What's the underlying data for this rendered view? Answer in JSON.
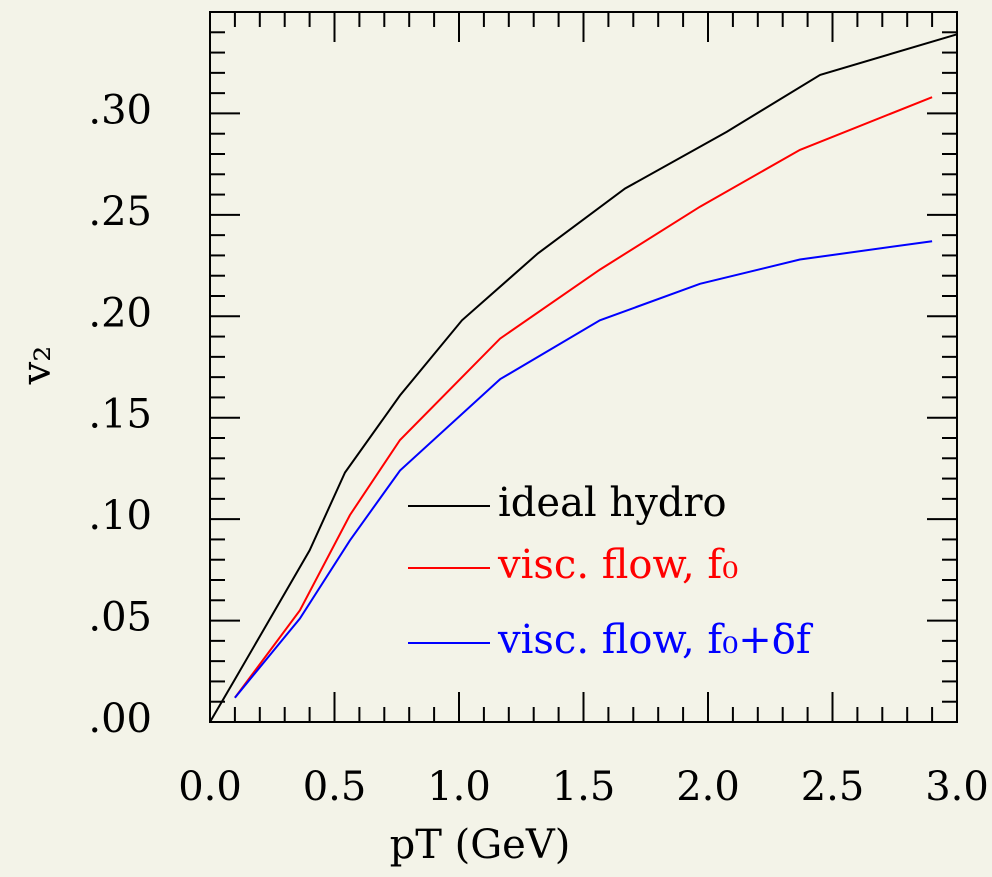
{
  "chart_data": {
    "type": "line",
    "x_label": "pT (GeV)",
    "y_label": "v₂",
    "xlim": [
      0,
      3.0
    ],
    "ylim": [
      0,
      0.35
    ],
    "xticks": [
      {
        "value": 0,
        "label": "0.0"
      },
      0.5,
      {
        "value": 1,
        "label": "1.0"
      },
      1.5,
      {
        "value": 2,
        "label": "2.0"
      },
      2.5,
      {
        "value": 3,
        "label": "3.0"
      }
    ],
    "yticks": [
      {
        "value": 0,
        "label": ".00"
      },
      {
        "value": 0.05,
        "label": ".05"
      },
      {
        "value": 0.1,
        "label": ".10"
      },
      {
        "value": 0.15,
        "label": ".15"
      },
      {
        "value": 0.2,
        "label": ".20"
      },
      {
        "value": 0.25,
        "label": ".25"
      },
      {
        "value": 0.3,
        "label": ".30"
      }
    ],
    "xminorticks": [
      0.1,
      0.2,
      0.3,
      0.4,
      0.6,
      0.7,
      0.8,
      0.9,
      1.1,
      1.2,
      1.3,
      1.4,
      1.6,
      1.7,
      1.8,
      1.9,
      2.1,
      2.2,
      2.3,
      2.4,
      2.6,
      2.7,
      2.8,
      2.9
    ],
    "yminorticks": [
      0.01,
      0.02,
      0.03,
      0.04,
      0.06,
      0.07,
      0.08,
      0.09,
      0.11,
      0.12,
      0.13,
      0.14,
      0.16,
      0.17,
      0.18,
      0.19,
      0.21,
      0.22,
      0.23,
      0.24,
      0.26,
      0.27,
      0.28,
      0.29,
      0.31,
      0.32,
      0.33,
      0.34
    ],
    "series": [
      {
        "name": "ideal hydro",
        "color": "#000000",
        "x": [
          0,
          0.1,
          0.4,
          0.542,
          0.763,
          1.012,
          1.317,
          1.667,
          2.076,
          2.45,
          3.0
        ],
        "values": [
          0,
          0.021,
          0.0846,
          0.123,
          0.161,
          0.198,
          0.231,
          0.263,
          0.291,
          0.319,
          0.339
        ]
      },
      {
        "name": "visc. flow, f₀",
        "color": "#ff0000",
        "x": [
          0.1,
          0.361,
          0.562,
          0.763,
          1.165,
          1.566,
          1.968,
          2.369,
          2.9
        ],
        "values": [
          0.012,
          0.055,
          0.102,
          0.139,
          0.189,
          0.223,
          0.254,
          0.282,
          0.308
        ]
      },
      {
        "name": "visc. flow, f₀+δf",
        "color": "#0000ff",
        "x": [
          0.1,
          0.361,
          0.562,
          0.763,
          1.165,
          1.566,
          1.968,
          2.369,
          2.9
        ],
        "values": [
          0.012,
          0.051,
          0.0895,
          0.124,
          0.169,
          0.198,
          0.216,
          0.228,
          0.237
        ]
      }
    ]
  }
}
